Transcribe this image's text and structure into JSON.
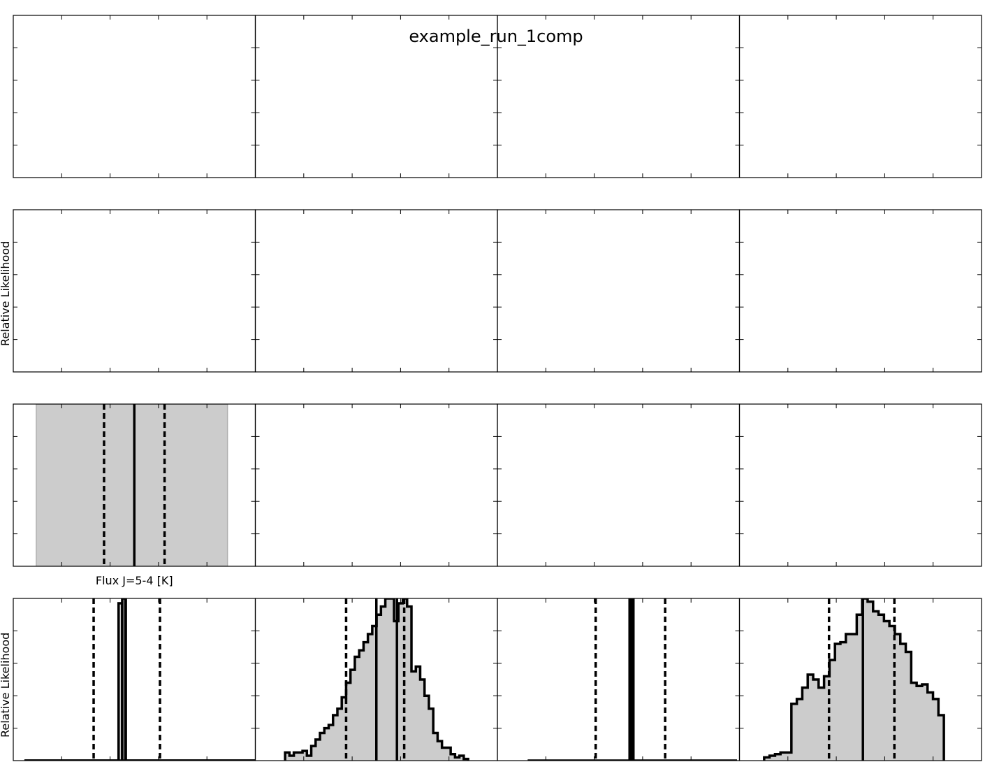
{
  "figure": {
    "title": "example_run_1comp"
  },
  "chart_data": {
    "type": "histogram-grid",
    "title": "example_run_1comp",
    "rows": 4,
    "cols": 4,
    "row_ylabels": [
      "",
      "Relative Likelihood",
      "",
      "Relative Likelihood"
    ],
    "row_xlabels": [
      "",
      "",
      "Flux J=5-4 [K]",
      ""
    ],
    "panels": [
      {
        "row": 0,
        "col": 0,
        "kind": "empty"
      },
      {
        "row": 0,
        "col": 1,
        "kind": "empty"
      },
      {
        "row": 0,
        "col": 2,
        "kind": "empty"
      },
      {
        "row": 0,
        "col": 3,
        "kind": "empty"
      },
      {
        "row": 1,
        "col": 0,
        "kind": "empty"
      },
      {
        "row": 1,
        "col": 1,
        "kind": "empty"
      },
      {
        "row": 1,
        "col": 2,
        "kind": "empty"
      },
      {
        "row": 1,
        "col": 3,
        "kind": "empty"
      },
      {
        "row": 2,
        "col": 0,
        "kind": "band",
        "xlim": [
          0,
          100
        ],
        "band": [
          9.5,
          88.5
        ],
        "median": 50,
        "lower": 37.5,
        "upper": 62.5
      },
      {
        "row": 2,
        "col": 1,
        "kind": "empty"
      },
      {
        "row": 2,
        "col": 2,
        "kind": "empty"
      },
      {
        "row": 2,
        "col": 3,
        "kind": "empty"
      },
      {
        "row": 3,
        "col": 0,
        "kind": "hist",
        "xlim": [
          0,
          100
        ],
        "ylim": [
          0,
          1
        ],
        "x0": 4.6,
        "bin_width": 1.5,
        "values": [
          0,
          0,
          0,
          0,
          0,
          0,
          0,
          0,
          0,
          0,
          0,
          0,
          0,
          0,
          0,
          0,
          0,
          0,
          0,
          0,
          0,
          0,
          0,
          0,
          0,
          0,
          0,
          0,
          0,
          0,
          0,
          0,
          0,
          0,
          0,
          0,
          0,
          0,
          0,
          0,
          0,
          0,
          0,
          0,
          0,
          0,
          0,
          0,
          0,
          0,
          0,
          0,
          0,
          0,
          0,
          0,
          0,
          0,
          0,
          0,
          0,
          0,
          0,
          0,
          0,
          0,
          0,
          0,
          0,
          0,
          0,
          0,
          0,
          0,
          0,
          0,
          0,
          0,
          0,
          0,
          0,
          0,
          0,
          0,
          0,
          0,
          0,
          0,
          0,
          0,
          0,
          0,
          0,
          0,
          0,
          0,
          0,
          0,
          0,
          0,
          0,
          0,
          0,
          0,
          0,
          0,
          0,
          0,
          0,
          0,
          0,
          0,
          0,
          0,
          0,
          0,
          0,
          0,
          0,
          0,
          0,
          0,
          0,
          0,
          0,
          0,
          0,
          0,
          0,
          0,
          0,
          0,
          0,
          0,
          0,
          0,
          0,
          0,
          0,
          0,
          0,
          0,
          0,
          0,
          0,
          0,
          0,
          0,
          0,
          0,
          0,
          0,
          0,
          0,
          0,
          0,
          0,
          0,
          0,
          0,
          0,
          0,
          0,
          0,
          0,
          0,
          0,
          0,
          0,
          0,
          0,
          0,
          0,
          0,
          0,
          0,
          0,
          0,
          0,
          0,
          0,
          0,
          0,
          0,
          0,
          0,
          0,
          0,
          0,
          0,
          0,
          0,
          0,
          0,
          0,
          0,
          0
        ],
        "spikes": [
          [
            43.5,
            0.97
          ],
          [
            45.0,
            1.0
          ]
        ],
        "median": 46.3,
        "lower": 33.2,
        "upper": 60.6
      },
      {
        "row": 3,
        "col": 1,
        "kind": "hist",
        "xlim": [
          0,
          100
        ],
        "ylim": [
          0,
          1
        ],
        "x0": 12.3,
        "bin_width": 1.8,
        "values": [
          0.05,
          0.03,
          0.05,
          0.05,
          0.06,
          0.03,
          0.09,
          0.13,
          0.17,
          0.2,
          0.22,
          0.28,
          0.32,
          0.39,
          0.48,
          0.56,
          0.64,
          0.68,
          0.73,
          0.78,
          0.83,
          0.9,
          0.95,
          1.0,
          1.0,
          0.86,
          0.97,
          1.0,
          0.95,
          0.55,
          0.58,
          0.5,
          0.4,
          0.32,
          0.17,
          0.12,
          0.08,
          0.08,
          0.04,
          0.02,
          0.03,
          0.01
        ],
        "median": 50.0,
        "lower": 37.5,
        "upper": 61.5,
        "median2": 58.5
      },
      {
        "row": 3,
        "col": 2,
        "kind": "spike",
        "xlim": [
          0,
          100
        ],
        "ylim": [
          0,
          1
        ],
        "line_from": 12.5,
        "line_to": 99.0,
        "spike_x": 55.4,
        "spike_width": 2.6,
        "median": 55.4,
        "lower": 40.6,
        "upper": 69.3
      },
      {
        "row": 3,
        "col": 3,
        "kind": "hist",
        "xlim": [
          0,
          100
        ],
        "ylim": [
          0,
          1
        ],
        "x0": 10.2,
        "bin_width": 2.25,
        "values": [
          0.02,
          0.03,
          0.04,
          0.05,
          0.05,
          0.35,
          0.38,
          0.45,
          0.53,
          0.5,
          0.45,
          0.52,
          0.62,
          0.72,
          0.73,
          0.78,
          0.78,
          0.9,
          1.0,
          0.98,
          0.92,
          0.9,
          0.86,
          0.83,
          0.78,
          0.72,
          0.67,
          0.48,
          0.46,
          0.47,
          0.42,
          0.38,
          0.28
        ],
        "median": 51.0,
        "lower": 37.0,
        "upper": 64.0
      }
    ]
  }
}
